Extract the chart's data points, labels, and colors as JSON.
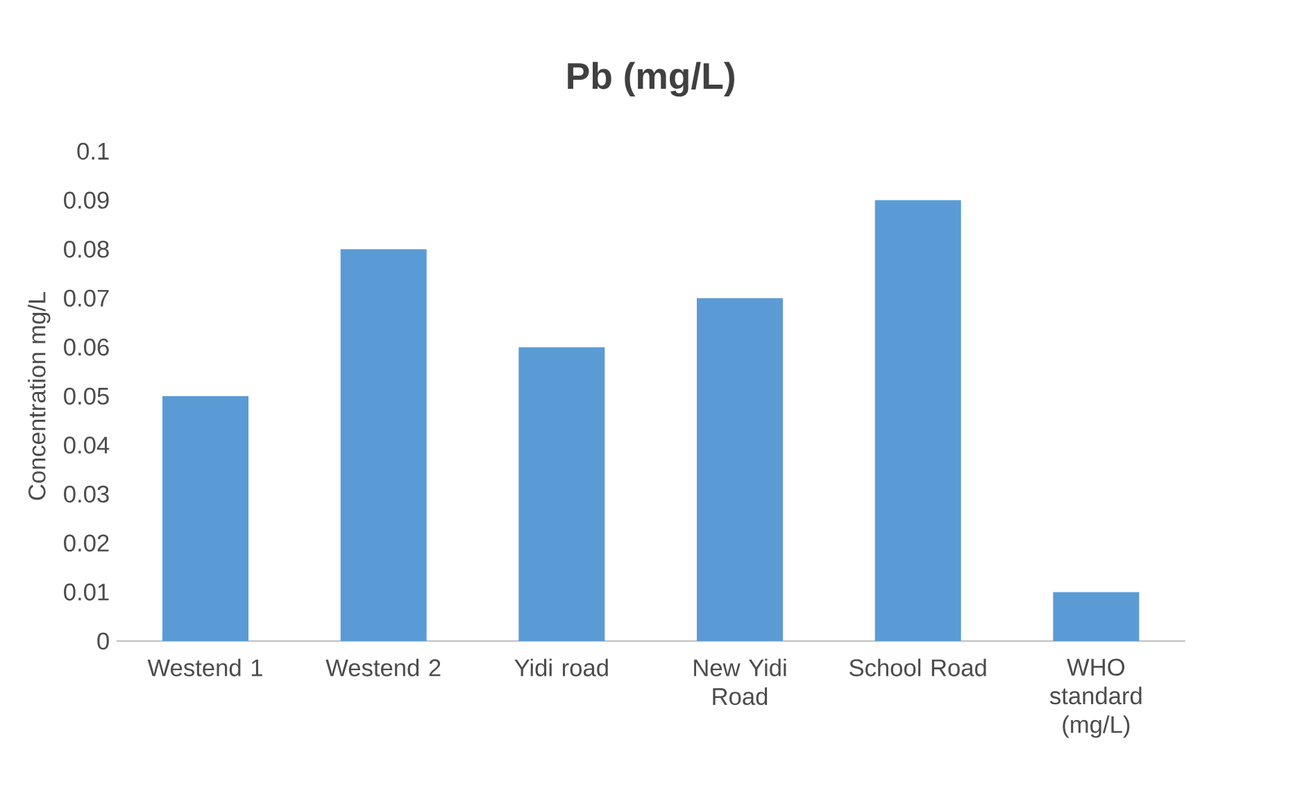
{
  "chart_data": {
    "type": "bar",
    "title": "Pb (mg/L)",
    "ylabel": "Concentration mg/L",
    "categories": [
      "Westend 1",
      "Westend 2",
      "Yidi road",
      "New Yidi Road",
      "School Road",
      "WHO standard (mg/L)"
    ],
    "values": [
      0.05,
      0.08,
      0.06,
      0.07,
      0.09,
      0.01
    ],
    "color": "#5b9bd5",
    "ylim": [
      0,
      0.1
    ],
    "yticks": [
      0,
      0.01,
      0.02,
      0.03,
      0.04,
      0.05,
      0.06,
      0.07,
      0.08,
      0.09,
      0.1
    ],
    "grid": false
  }
}
